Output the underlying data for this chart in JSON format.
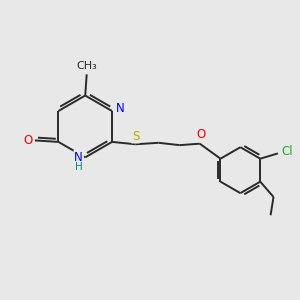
{
  "bg_color": "#e8e8e8",
  "atom_colors": {
    "C": "#2a2a2a",
    "N": "#0000ee",
    "O": "#ee0000",
    "S": "#bbaa00",
    "Cl": "#22aa22",
    "H": "#008888"
  },
  "bond_color": "#2a2a2a",
  "bond_width": 1.4,
  "font_size": 8.5
}
